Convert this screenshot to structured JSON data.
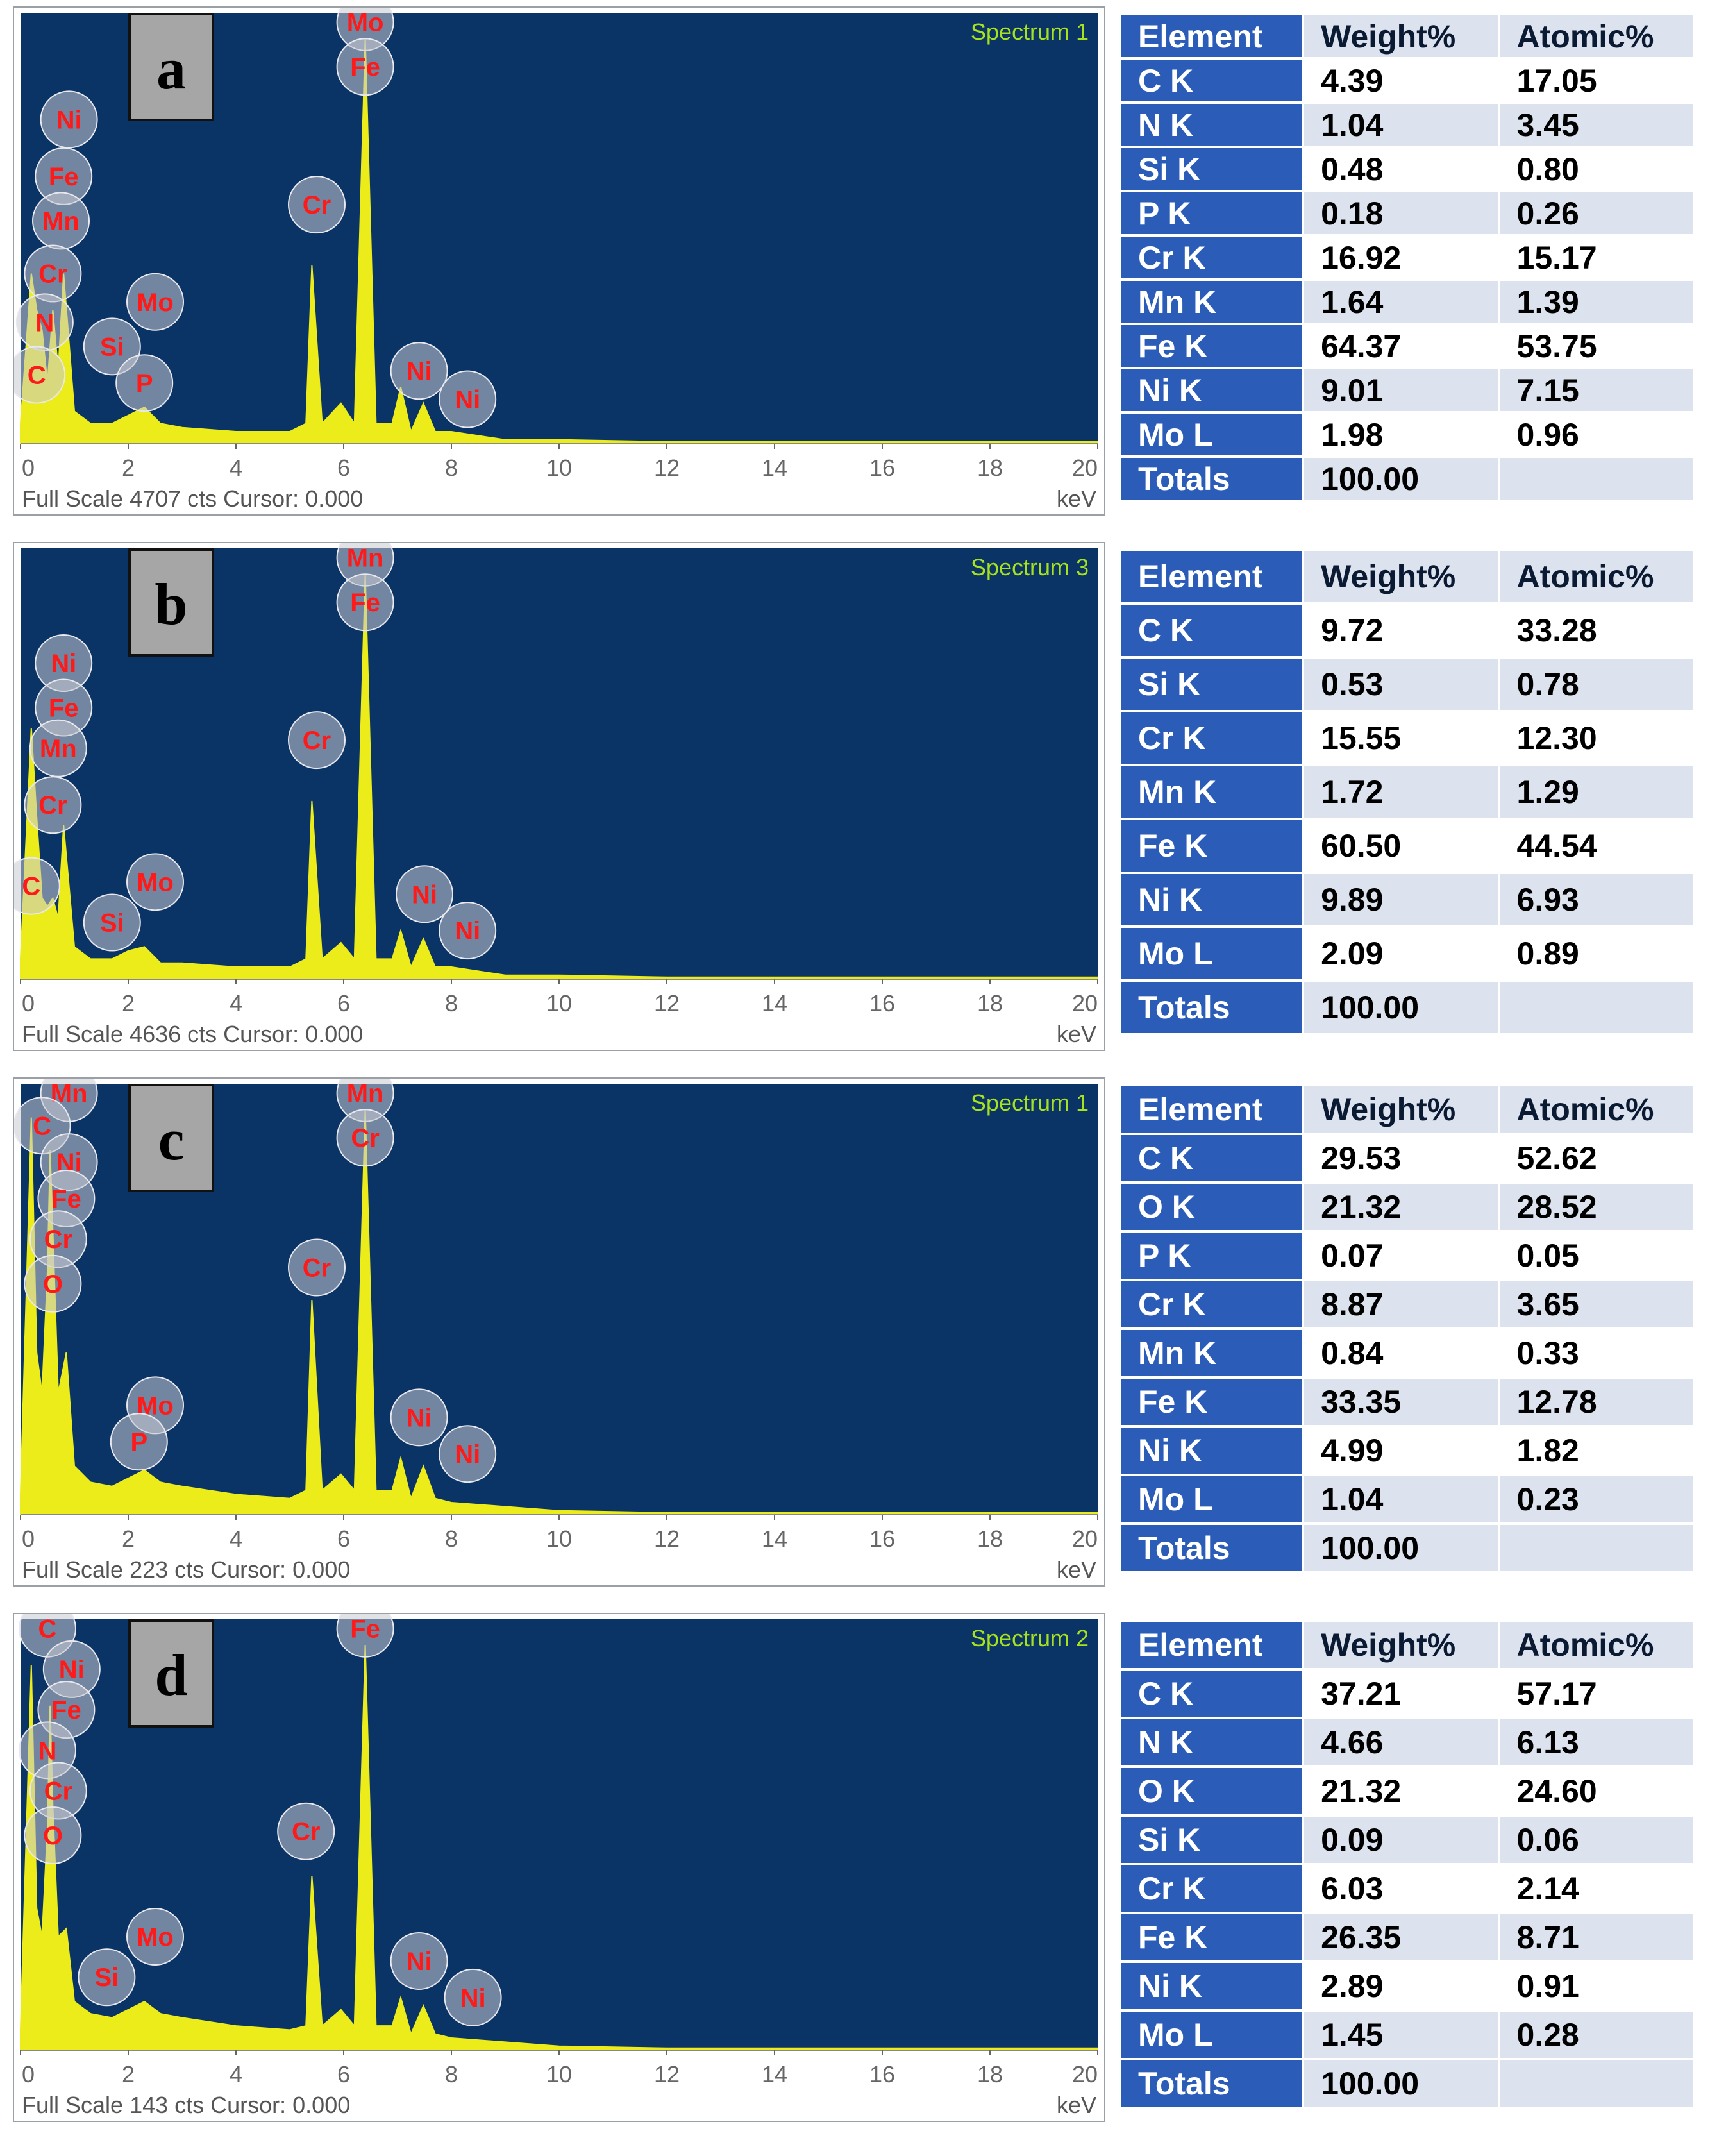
{
  "chart_data": [
    {
      "type": "line",
      "panel_label": "a",
      "spectrum_title": "Spectrum 1",
      "footer": "Full Scale 4707 cts Cursor: 0.000",
      "xunit": "keV",
      "xlim": [
        0,
        20
      ],
      "xticks": [
        0,
        2,
        4,
        6,
        8,
        10,
        12,
        14,
        16,
        18,
        20
      ],
      "x": [
        0,
        0.2,
        0.3,
        0.4,
        0.5,
        0.6,
        0.7,
        0.8,
        1.0,
        1.3,
        1.7,
        2.0,
        2.3,
        2.6,
        3.0,
        4.0,
        5.0,
        5.3,
        5.41,
        5.6,
        5.95,
        6.2,
        6.4,
        6.6,
        6.9,
        7.06,
        7.25,
        7.48,
        7.7,
        8.0,
        8.5,
        9.0,
        10.0,
        12.0,
        20.0
      ],
      "y": [
        0.05,
        0.42,
        0.33,
        0.28,
        0.15,
        0.33,
        0.18,
        0.42,
        0.08,
        0.05,
        0.05,
        0.07,
        0.09,
        0.05,
        0.04,
        0.03,
        0.03,
        0.05,
        0.44,
        0.05,
        0.1,
        0.05,
        1.0,
        0.05,
        0.05,
        0.14,
        0.03,
        0.1,
        0.03,
        0.03,
        0.02,
        0.01,
        0.01,
        0.005,
        0.005
      ],
      "peak_labels": [
        {
          "label": "Mo",
          "x": 6.4,
          "y": 1.04
        },
        {
          "label": "Fe",
          "x": 6.4,
          "y": 0.93
        },
        {
          "label": "Ni",
          "x": 0.9,
          "y": 0.8
        },
        {
          "label": "Fe",
          "x": 0.8,
          "y": 0.66
        },
        {
          "label": "Mn",
          "x": 0.75,
          "y": 0.55
        },
        {
          "label": "Cr",
          "x": 0.6,
          "y": 0.42
        },
        {
          "label": "N",
          "x": 0.45,
          "y": 0.3
        },
        {
          "label": "C",
          "x": 0.3,
          "y": 0.17
        },
        {
          "label": "Si",
          "x": 1.7,
          "y": 0.24
        },
        {
          "label": "Mo",
          "x": 2.5,
          "y": 0.35
        },
        {
          "label": "P",
          "x": 2.3,
          "y": 0.15
        },
        {
          "label": "Cr",
          "x": 5.5,
          "y": 0.59
        },
        {
          "label": "Ni",
          "x": 7.4,
          "y": 0.18
        },
        {
          "label": "Ni",
          "x": 8.3,
          "y": 0.11
        }
      ]
    },
    {
      "type": "line",
      "panel_label": "b",
      "spectrum_title": "Spectrum 3",
      "footer": "Full Scale 4636 cts Cursor: 0.000",
      "xunit": "keV",
      "xlim": [
        0,
        20
      ],
      "xticks": [
        0,
        2,
        4,
        6,
        8,
        10,
        12,
        14,
        16,
        18,
        20
      ],
      "x": [
        0,
        0.2,
        0.3,
        0.4,
        0.5,
        0.6,
        0.7,
        0.8,
        1.0,
        1.3,
        1.7,
        2.0,
        2.3,
        2.6,
        3.0,
        4.0,
        5.0,
        5.3,
        5.41,
        5.6,
        5.95,
        6.2,
        6.4,
        6.6,
        6.9,
        7.06,
        7.25,
        7.48,
        7.7,
        8.0,
        8.5,
        9.0,
        10.0,
        12.0,
        20.0
      ],
      "y": [
        0.05,
        0.62,
        0.4,
        0.2,
        0.18,
        0.2,
        0.15,
        0.38,
        0.08,
        0.05,
        0.05,
        0.07,
        0.08,
        0.04,
        0.04,
        0.03,
        0.03,
        0.05,
        0.44,
        0.05,
        0.09,
        0.05,
        1.0,
        0.05,
        0.05,
        0.12,
        0.03,
        0.1,
        0.03,
        0.03,
        0.02,
        0.01,
        0.01,
        0.005,
        0.005
      ],
      "peak_labels": [
        {
          "label": "Mn",
          "x": 6.4,
          "y": 1.04
        },
        {
          "label": "Fe",
          "x": 6.4,
          "y": 0.93
        },
        {
          "label": "Ni",
          "x": 0.8,
          "y": 0.78
        },
        {
          "label": "Fe",
          "x": 0.8,
          "y": 0.67
        },
        {
          "label": "Mn",
          "x": 0.7,
          "y": 0.57
        },
        {
          "label": "Cr",
          "x": 0.6,
          "y": 0.43
        },
        {
          "label": "C",
          "x": 0.2,
          "y": 0.23
        },
        {
          "label": "Mo",
          "x": 2.5,
          "y": 0.24
        },
        {
          "label": "Si",
          "x": 1.7,
          "y": 0.14
        },
        {
          "label": "Cr",
          "x": 5.5,
          "y": 0.59
        },
        {
          "label": "Ni",
          "x": 7.5,
          "y": 0.21
        },
        {
          "label": "Ni",
          "x": 8.3,
          "y": 0.12
        }
      ]
    },
    {
      "type": "line",
      "panel_label": "c",
      "spectrum_title": "Spectrum 1",
      "footer": "Full Scale 223 cts Cursor: 0.000",
      "xunit": "keV",
      "xlim": [
        0,
        20
      ],
      "xticks": [
        0,
        2,
        4,
        6,
        8,
        10,
        12,
        14,
        16,
        18,
        20
      ],
      "x": [
        0,
        0.2,
        0.3,
        0.4,
        0.5,
        0.55,
        0.6,
        0.7,
        0.85,
        1.0,
        1.3,
        1.7,
        2.0,
        2.3,
        2.6,
        3.0,
        3.5,
        4.0,
        5.0,
        5.3,
        5.41,
        5.6,
        5.95,
        6.2,
        6.4,
        6.6,
        6.9,
        7.06,
        7.25,
        7.48,
        7.7,
        8.0,
        9.0,
        10.0,
        12.0,
        20.0
      ],
      "y": [
        0.05,
        0.98,
        0.4,
        0.3,
        0.6,
        0.9,
        0.7,
        0.3,
        0.4,
        0.12,
        0.08,
        0.07,
        0.09,
        0.11,
        0.08,
        0.07,
        0.06,
        0.05,
        0.04,
        0.06,
        0.53,
        0.06,
        0.1,
        0.06,
        1.0,
        0.06,
        0.06,
        0.14,
        0.04,
        0.12,
        0.04,
        0.03,
        0.02,
        0.01,
        0.005,
        0.005
      ],
      "peak_labels": [
        {
          "label": "Mn",
          "x": 6.4,
          "y": 1.04
        },
        {
          "label": "Cr",
          "x": 6.4,
          "y": 0.93
        },
        {
          "label": "Mn",
          "x": 0.9,
          "y": 1.04
        },
        {
          "label": "C",
          "x": 0.4,
          "y": 0.96
        },
        {
          "label": "Ni",
          "x": 0.9,
          "y": 0.87
        },
        {
          "label": "Fe",
          "x": 0.85,
          "y": 0.78
        },
        {
          "label": "Cr",
          "x": 0.7,
          "y": 0.68
        },
        {
          "label": "O",
          "x": 0.6,
          "y": 0.57
        },
        {
          "label": "Mo",
          "x": 2.5,
          "y": 0.27
        },
        {
          "label": "P",
          "x": 2.2,
          "y": 0.18
        },
        {
          "label": "Cr",
          "x": 5.5,
          "y": 0.61
        },
        {
          "label": "Ni",
          "x": 7.4,
          "y": 0.24
        },
        {
          "label": "Ni",
          "x": 8.3,
          "y": 0.15
        }
      ]
    },
    {
      "type": "line",
      "panel_label": "d",
      "spectrum_title": "Spectrum 2",
      "footer": "Full Scale 143 cts Cursor: 0.000",
      "xunit": "keV",
      "xlim": [
        0,
        20
      ],
      "xticks": [
        0,
        2,
        4,
        6,
        8,
        10,
        12,
        14,
        16,
        18,
        20
      ],
      "x": [
        0,
        0.2,
        0.3,
        0.4,
        0.5,
        0.55,
        0.6,
        0.7,
        0.85,
        1.0,
        1.3,
        1.7,
        2.0,
        2.3,
        2.6,
        3.0,
        3.5,
        4.0,
        5.0,
        5.3,
        5.41,
        5.6,
        5.95,
        6.2,
        6.4,
        6.6,
        6.9,
        7.06,
        7.25,
        7.48,
        7.7,
        8.0,
        9.0,
        10.0,
        12.0,
        20.0
      ],
      "y": [
        0.05,
        0.95,
        0.35,
        0.28,
        0.55,
        0.85,
        0.6,
        0.28,
        0.3,
        0.12,
        0.09,
        0.08,
        0.1,
        0.12,
        0.09,
        0.08,
        0.07,
        0.06,
        0.05,
        0.06,
        0.43,
        0.06,
        0.1,
        0.06,
        1.0,
        0.06,
        0.06,
        0.13,
        0.04,
        0.11,
        0.04,
        0.03,
        0.02,
        0.01,
        0.005,
        0.005
      ],
      "peak_labels": [
        {
          "label": "Fe",
          "x": 6.4,
          "y": 1.04
        },
        {
          "label": "C",
          "x": 0.5,
          "y": 1.04
        },
        {
          "label": "Ni",
          "x": 0.95,
          "y": 0.94
        },
        {
          "label": "Fe",
          "x": 0.85,
          "y": 0.84
        },
        {
          "label": "N",
          "x": 0.5,
          "y": 0.74
        },
        {
          "label": "Cr",
          "x": 0.7,
          "y": 0.64
        },
        {
          "label": "O",
          "x": 0.6,
          "y": 0.53
        },
        {
          "label": "Mo",
          "x": 2.5,
          "y": 0.28
        },
        {
          "label": "Si",
          "x": 1.6,
          "y": 0.18
        },
        {
          "label": "Cr",
          "x": 5.3,
          "y": 0.54
        },
        {
          "label": "Ni",
          "x": 7.4,
          "y": 0.22
        },
        {
          "label": "Ni",
          "x": 8.4,
          "y": 0.13
        }
      ]
    }
  ],
  "tables": [
    {
      "headers": [
        "Element",
        "Weight%",
        "Atomic%"
      ],
      "rows": [
        [
          "C K",
          "4.39",
          "17.05"
        ],
        [
          "N K",
          "1.04",
          "3.45"
        ],
        [
          "Si K",
          "0.48",
          "0.80"
        ],
        [
          "P K",
          "0.18",
          "0.26"
        ],
        [
          "Cr K",
          "16.92",
          "15.17"
        ],
        [
          "Mn K",
          "1.64",
          "1.39"
        ],
        [
          "Fe K",
          "64.37",
          "53.75"
        ],
        [
          "Ni K",
          "9.01",
          "7.15"
        ],
        [
          "Mo L",
          "1.98",
          "0.96"
        ]
      ],
      "totals_label": "Totals",
      "totals_weight": "100.00"
    },
    {
      "headers": [
        "Element",
        "Weight%",
        "Atomic%"
      ],
      "rows": [
        [
          "C K",
          "9.72",
          "33.28"
        ],
        [
          "Si K",
          "0.53",
          "0.78"
        ],
        [
          "Cr K",
          "15.55",
          "12.30"
        ],
        [
          "Mn K",
          "1.72",
          "1.29"
        ],
        [
          "Fe K",
          "60.50",
          "44.54"
        ],
        [
          "Ni K",
          "9.89",
          "6.93"
        ],
        [
          "Mo L",
          "2.09",
          "0.89"
        ]
      ],
      "totals_label": "Totals",
      "totals_weight": "100.00"
    },
    {
      "headers": [
        "Element",
        "Weight%",
        "Atomic%"
      ],
      "rows": [
        [
          "C K",
          "29.53",
          "52.62"
        ],
        [
          "O K",
          "21.32",
          "28.52"
        ],
        [
          "P K",
          "0.07",
          "0.05"
        ],
        [
          "Cr K",
          "8.87",
          "3.65"
        ],
        [
          "Mn K",
          "0.84",
          "0.33"
        ],
        [
          "Fe K",
          "33.35",
          "12.78"
        ],
        [
          "Ni K",
          "4.99",
          "1.82"
        ],
        [
          "Mo L",
          "1.04",
          "0.23"
        ]
      ],
      "totals_label": "Totals",
      "totals_weight": "100.00"
    },
    {
      "headers": [
        "Element",
        "Weight%",
        "Atomic%"
      ],
      "rows": [
        [
          "C K",
          "37.21",
          "57.17"
        ],
        [
          "N K",
          "4.66",
          "6.13"
        ],
        [
          "O K",
          "21.32",
          "24.60"
        ],
        [
          "Si K",
          "0.09",
          "0.06"
        ],
        [
          "Cr K",
          "6.03",
          "2.14"
        ],
        [
          "Fe K",
          "26.35",
          "8.71"
        ],
        [
          "Ni K",
          "2.89",
          "0.91"
        ],
        [
          "Mo L",
          "1.45",
          "0.28"
        ]
      ],
      "totals_label": "Totals",
      "totals_weight": "100.00"
    }
  ],
  "colors": {
    "plot_bg": "#0b3466",
    "spectrum_fill": "#ecec1a",
    "title_green": "#a8e21e",
    "peak_label_red": "#ff1a1a",
    "table_blue": "#2a5cb8",
    "table_alt": "#dde3ee"
  }
}
